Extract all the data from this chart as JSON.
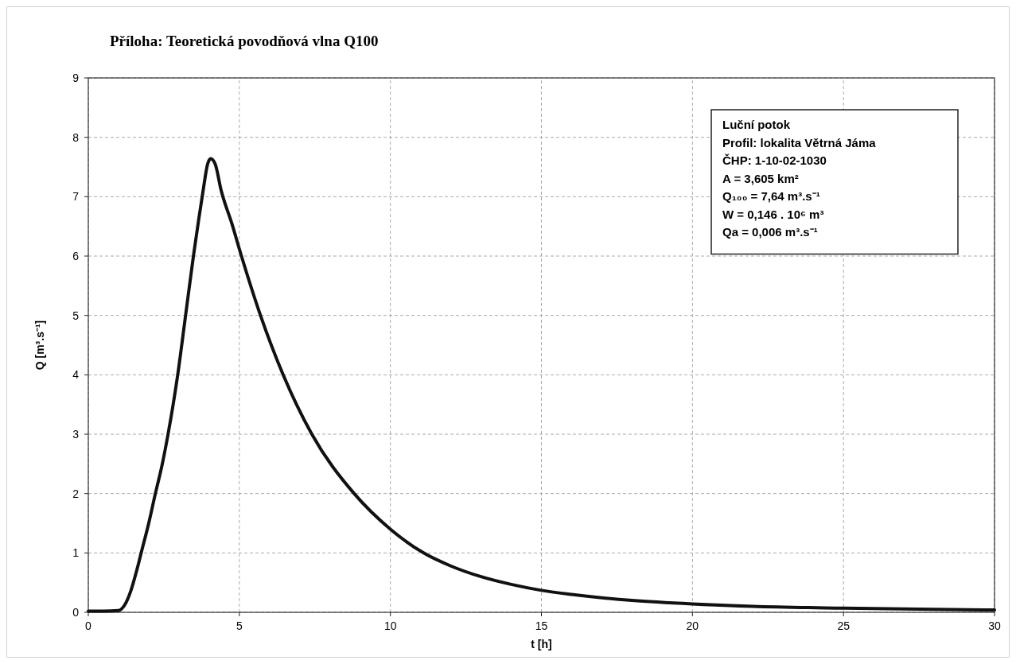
{
  "chart_data": {
    "type": "line",
    "title": "Příloha: Teoretická povodňová vlna Q100",
    "xlabel": "t [h]",
    "ylabel": "Q [m³.s⁻¹]",
    "x": [
      0,
      0.5,
      1,
      1.2,
      1.4,
      1.6,
      1.75,
      2,
      2.22,
      2.45,
      2.64,
      2.96,
      3.22,
      3.48,
      3.65,
      3.8,
      3.95,
      4.05,
      4.2,
      4.4,
      4.75,
      5.07,
      5.7,
      6.45,
      7.4,
      8.8,
      10,
      11.1,
      12,
      13,
      14,
      15,
      16,
      18,
      20,
      22,
      25,
      28,
      30
    ],
    "series": [
      {
        "color": "#111111",
        "values": [
          0.02,
          0.02,
          0.03,
          0.12,
          0.35,
          0.7,
          1,
          1.5,
          2,
          2.5,
          3,
          4,
          5,
          6,
          6.6,
          7.1,
          7.55,
          7.64,
          7.55,
          7.1,
          6.55,
          6,
          5,
          4,
          3,
          2,
          1.4,
          1,
          0.78,
          0.6,
          0.47,
          0.37,
          0.3,
          0.2,
          0.14,
          0.1,
          0.07,
          0.05,
          0.04
        ]
      }
    ],
    "xlim": [
      0,
      30
    ],
    "xticks": [
      0,
      5,
      10,
      15,
      20,
      25,
      30
    ],
    "ylim": [
      0,
      9
    ],
    "yticks": [
      0,
      1,
      2,
      3,
      4,
      5,
      6,
      7,
      8,
      9
    ],
    "grid": true,
    "marker": "none",
    "line_style": "solid",
    "annotations": [
      "Luční potok",
      "Profil: lokalita Větrná Jáma",
      "ČHP: 1-10-02-1030",
      "A = 3,605 km²",
      "Q₁₀₀  = 7,64 m³.s⁻¹",
      "W  = 0,146 . 10⁶ m³",
      "Qa = 0,006 m³.s⁻¹"
    ]
  }
}
